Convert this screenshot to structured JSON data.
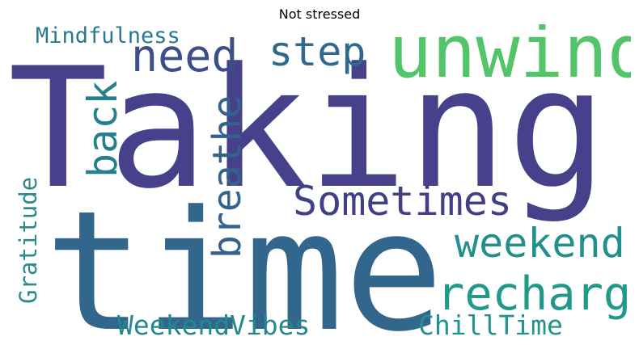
{
  "title": "Not stressed",
  "words": [
    {
      "text": "Taking",
      "color": "#46418a"
    },
    {
      "text": "time",
      "color": "#33668c"
    },
    {
      "text": "unwind",
      "color": "#52c469"
    },
    {
      "text": "Sometimes",
      "color": "#423f85"
    },
    {
      "text": "weekend",
      "color": "#21908c"
    },
    {
      "text": "recharge",
      "color": "#1f9a8a"
    },
    {
      "text": "step",
      "color": "#31688e"
    },
    {
      "text": "need",
      "color": "#3d4e8a"
    },
    {
      "text": "back",
      "color": "#277f8e"
    },
    {
      "text": "breathe",
      "color": "#33628d"
    },
    {
      "text": "Mindfulness",
      "color": "#2a788e"
    },
    {
      "text": "Gratitude",
      "color": "#2c8a8a"
    },
    {
      "text": "WeekendVibes",
      "color": "#23888e"
    },
    {
      "text": "ChillTime",
      "color": "#22928c"
    }
  ]
}
